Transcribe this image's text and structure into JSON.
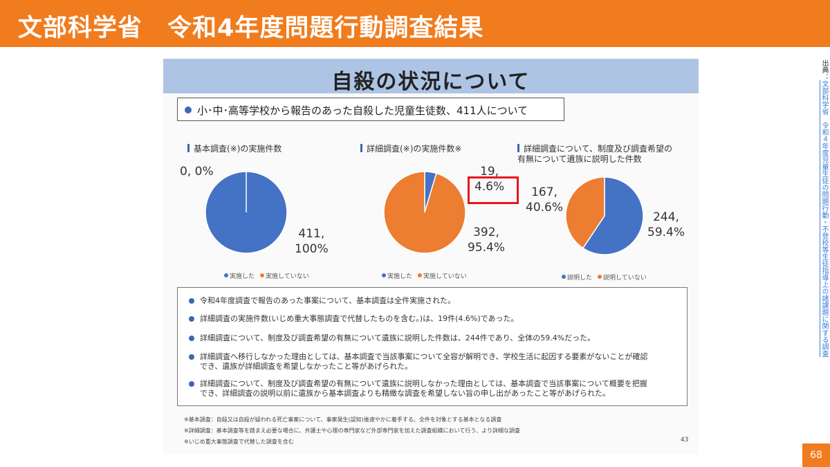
{
  "header": {
    "title": "文部科学省　令和4年度問題行動調査結果"
  },
  "slide": {
    "title": "自殺の状況について",
    "summary": "小･中･高等学校から報告のあった自殺した児童生徒数、411人について",
    "notes": [
      "令和4年度調査で報告のあった事案について、基本調査は全件実施された。",
      "詳細調査の実施件数(いじめ重大事態調査で代替したものを含む。)は、19件(4.6%)であった。",
      "詳細調査について、制度及び調査希望の有無について遺族に説明した件数は、244件であり、全体の59.4%だった。",
      "詳細調査へ移行しなかった理由としては、基本調査で当該事案について全容が解明でき、学校生活に起因する要素がないことが確認\nでき、遺族が詳細調査を希望しなかったこと等があげられた。",
      "詳細調査について、制度及び調査希望の有無について遺族に説明しなかった理由としては、基本調査で当該事案について概要を把握\nでき、詳細調査の説明以前に遺族から基本調査よりも精緻な調査を希望しない旨の申し出があったこと等があげられた。"
    ],
    "footnotes": [
      "※基本調査：自殺又は自殺が疑われる死亡事案について、事案発生(認知)後速やかに着手する、全件を対象とする基本となる調査",
      "※詳細調査：基本調査等を踏まえ必要な場合に、弁護士や心理の専門家など外部専門家を加えた調査組織において行う、より詳細な調査",
      "※いじめ重大事態調査で代替した調査を含む"
    ],
    "page_number": "43"
  },
  "source": {
    "prefix": "出典：",
    "link_text": "文部科学省　令和４年度児童生徒の問題行動・不登校等生徒指導上の諸課題に関する調査"
  },
  "page_number": "68",
  "colors": {
    "accent": "#f07c1e",
    "blue": "#4472c4",
    "orange": "#ed7d31",
    "highlight": "#e8151d"
  },
  "chart_data": [
    {
      "type": "pie",
      "title": "基本調査(※)の実施件数",
      "categories": [
        "実施した",
        "実施していない"
      ],
      "values": [
        411,
        0
      ],
      "labels": [
        "411,\n100%",
        "0, 0%"
      ],
      "legend_position": "bottom"
    },
    {
      "type": "pie",
      "title": "詳細調査(※)の実施件数※",
      "categories": [
        "実施した",
        "実施していない"
      ],
      "values": [
        19,
        392
      ],
      "labels": [
        "19,\n4.6%",
        "392,\n95.4%"
      ],
      "legend_position": "bottom"
    },
    {
      "type": "pie",
      "title": "詳細調査について、制度及び調査希望の\n有無について遺族に説明した件数",
      "categories": [
        "説明した",
        "説明していない"
      ],
      "values": [
        244,
        167
      ],
      "labels": [
        "244,\n59.4%",
        "167,\n40.6%"
      ],
      "legend_position": "bottom"
    }
  ]
}
